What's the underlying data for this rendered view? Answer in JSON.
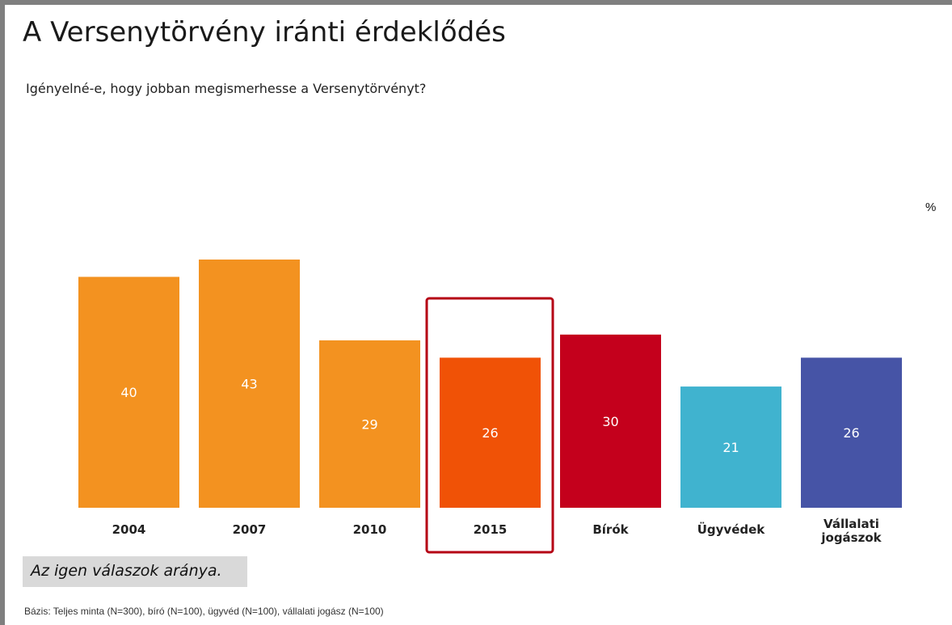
{
  "title": "A Versenytörvény iránti érdeklődés",
  "subtitle": "Igényelné-e, hogy jobban megismerhesse a Versenytörvényt?",
  "unit_label": "%",
  "note": "Az igen válaszok aránya.",
  "base_text": "Bázis: Teljes minta (N=300), bíró (N=100), ügyvéd (N=100), vállalati jogász (N=100)",
  "chart_data": {
    "type": "bar",
    "categories": [
      "2004",
      "2007",
      "2010",
      "2015",
      "Bírók",
      "Ügyvédek",
      "Vállalati jogászok"
    ],
    "category_lines": [
      [
        "2004"
      ],
      [
        "2007"
      ],
      [
        "2010"
      ],
      [
        "2015"
      ],
      [
        "Bírók"
      ],
      [
        "Ügyvédek"
      ],
      [
        "Vállalati",
        "jogászok"
      ]
    ],
    "values": [
      40,
      43,
      29,
      26,
      30,
      21,
      26
    ],
    "colors": [
      "#f39220",
      "#f39220",
      "#f39220",
      "#f05206",
      "#c4001c",
      "#40b3cf",
      "#4654a6"
    ],
    "highlight_index": 3,
    "highlight_color": "#b50014",
    "value_label_color": "#ffffff",
    "ylim": [
      0,
      43
    ],
    "grid": false,
    "legend": "none"
  }
}
